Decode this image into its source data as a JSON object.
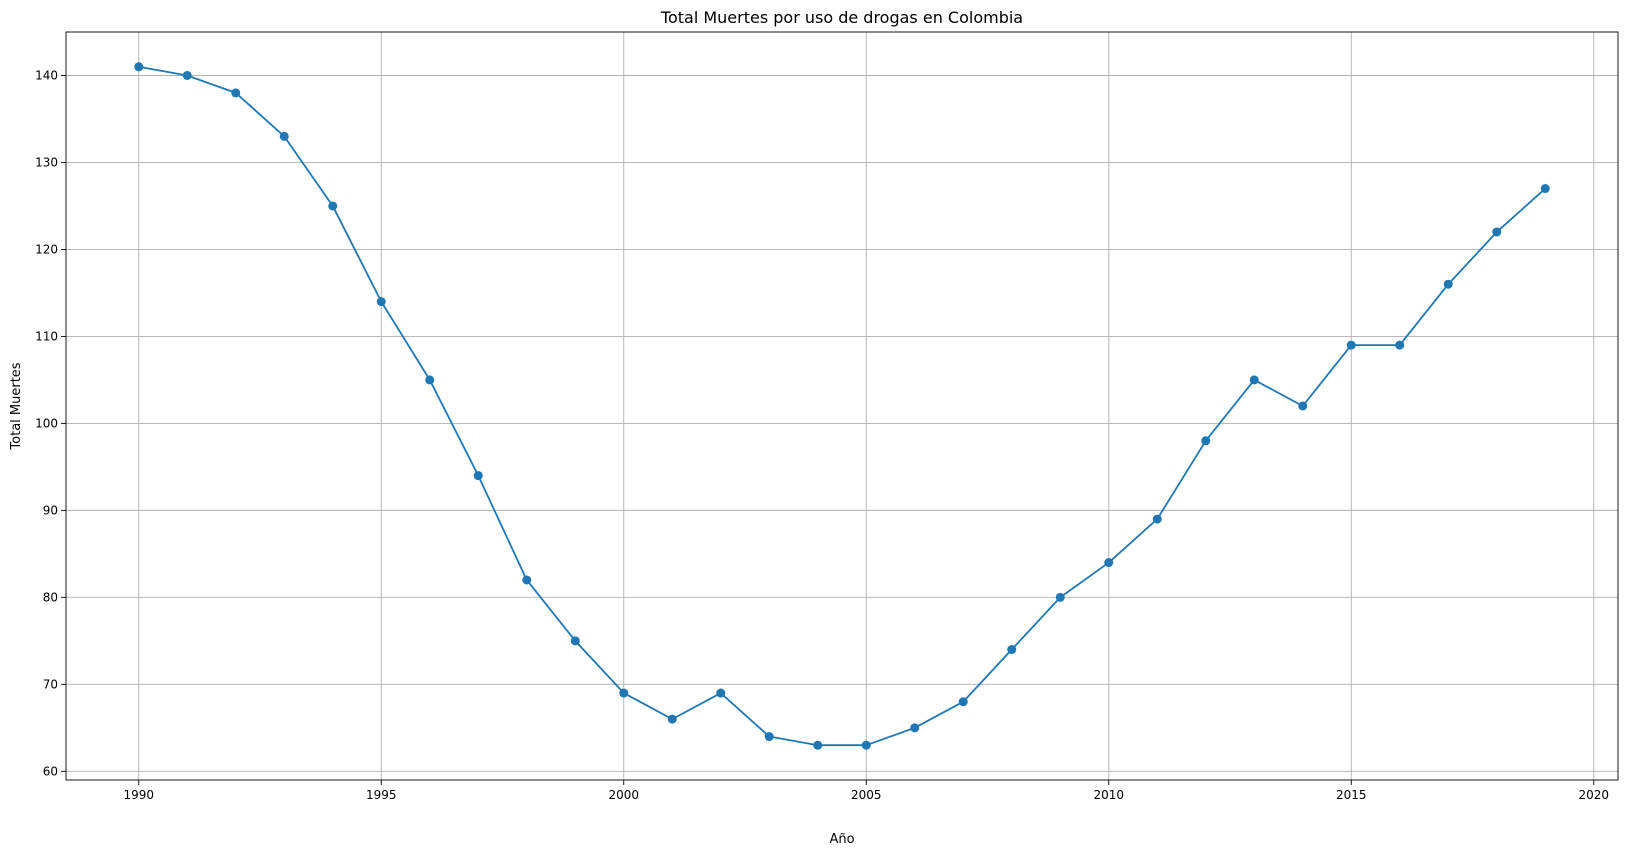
{
  "chart_data": {
    "type": "line",
    "title": "Total Muertes por uso de drogas en Colombia",
    "xlabel": "Año",
    "ylabel": "Total Muertes",
    "xlim": [
      1988.5,
      2020.5
    ],
    "ylim": [
      59.0,
      145.0
    ],
    "xticks": [
      1990,
      1995,
      2000,
      2005,
      2010,
      2015,
      2020
    ],
    "yticks": [
      60,
      70,
      80,
      90,
      100,
      110,
      120,
      130,
      140
    ],
    "grid": true,
    "marker": "circle",
    "color": "#1f77b4",
    "x": [
      1990,
      1991,
      1992,
      1993,
      1994,
      1995,
      1996,
      1997,
      1998,
      1999,
      2000,
      2001,
      2002,
      2003,
      2004,
      2005,
      2006,
      2007,
      2008,
      2009,
      2010,
      2011,
      2012,
      2013,
      2014,
      2015,
      2016,
      2017,
      2018,
      2019
    ],
    "y": [
      141,
      140,
      138,
      133,
      125,
      114,
      105,
      94,
      82,
      75,
      69,
      66,
      69,
      64,
      63,
      63,
      65,
      68,
      74,
      80,
      84,
      89,
      98,
      105,
      102,
      109,
      109,
      116,
      122,
      127
    ]
  }
}
